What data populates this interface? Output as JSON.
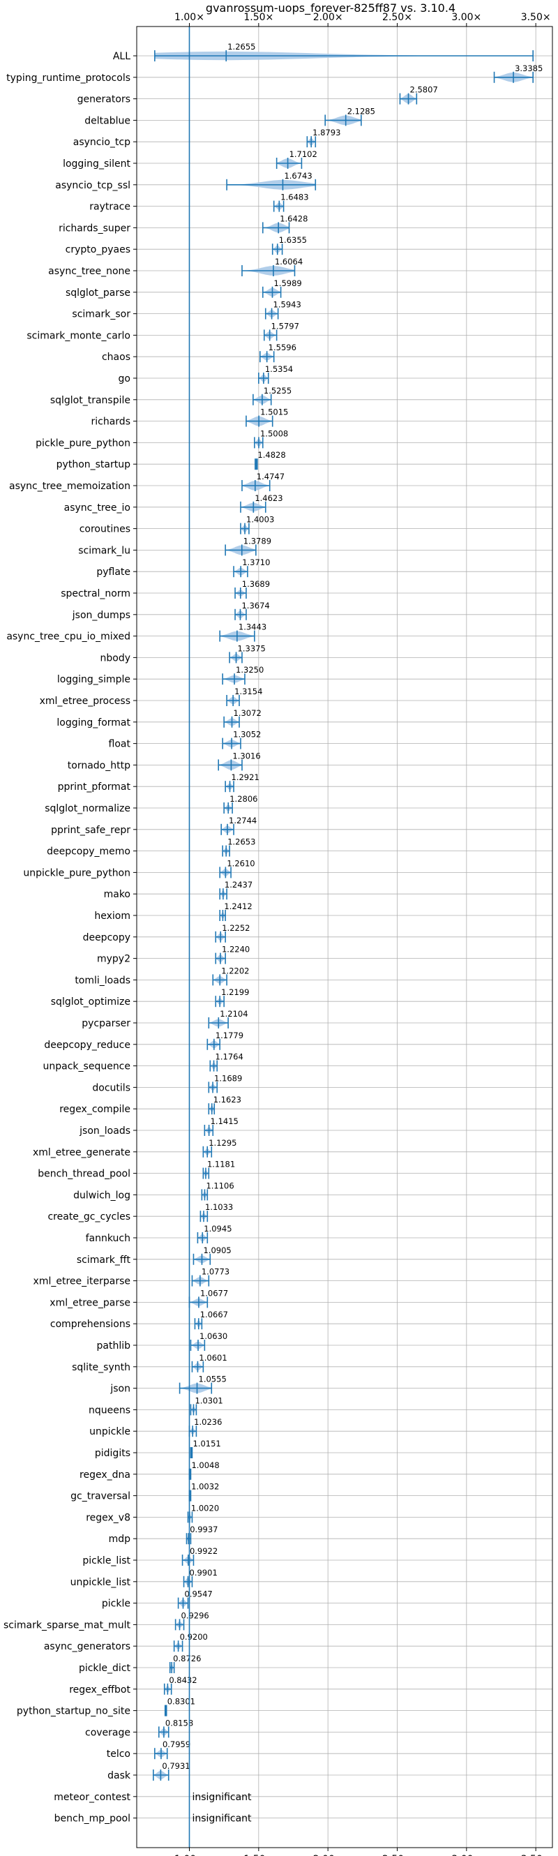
{
  "chart_data": {
    "type": "violin",
    "title": "gvanrossum-uops_forever-825ff87 vs. 3.10.4",
    "xlabel": "",
    "ylabel": "",
    "xlim": [
      0.62,
      3.62
    ],
    "x_ticks": [
      "1.00×",
      "1.50×",
      "2.00×",
      "2.50×",
      "3.00×",
      "3.50×"
    ],
    "x_tick_values": [
      1.0,
      1.5,
      2.0,
      2.5,
      3.0,
      3.5
    ],
    "reference_line": 1.0,
    "grid": true,
    "colors": {
      "violin": "#a9c9e8",
      "line": "#1f77b4",
      "text": "#000000"
    },
    "benchmarks": [
      {
        "name": "ALL",
        "value": 1.2655,
        "min": 0.75,
        "max": 3.48,
        "width": 0.4
      },
      {
        "name": "typing_runtime_protocols",
        "value": 3.3385,
        "min": 3.2,
        "max": 3.48,
        "width": 0.45
      },
      {
        "name": "generators",
        "value": 2.5807,
        "min": 2.52,
        "max": 2.64,
        "width": 0.45
      },
      {
        "name": "deltablue",
        "value": 2.1285,
        "min": 1.98,
        "max": 2.24,
        "width": 0.45
      },
      {
        "name": "asyncio_tcp",
        "value": 1.8793,
        "min": 1.85,
        "max": 1.91,
        "width": 0.35
      },
      {
        "name": "logging_silent",
        "value": 1.7102,
        "min": 1.63,
        "max": 1.81,
        "width": 0.45
      },
      {
        "name": "asyncio_tcp_ssl",
        "value": 1.6743,
        "min": 1.27,
        "max": 1.91,
        "width": 0.45
      },
      {
        "name": "raytrace",
        "value": 1.6483,
        "min": 1.61,
        "max": 1.68,
        "width": 0.35
      },
      {
        "name": "richards_super",
        "value": 1.6428,
        "min": 1.53,
        "max": 1.72,
        "width": 0.45
      },
      {
        "name": "crypto_pyaes",
        "value": 1.6355,
        "min": 1.6,
        "max": 1.67,
        "width": 0.35
      },
      {
        "name": "async_tree_none",
        "value": 1.6064,
        "min": 1.38,
        "max": 1.76,
        "width": 0.45
      },
      {
        "name": "sqlglot_parse",
        "value": 1.5989,
        "min": 1.53,
        "max": 1.66,
        "width": 0.4
      },
      {
        "name": "scimark_sor",
        "value": 1.5943,
        "min": 1.55,
        "max": 1.64,
        "width": 0.35
      },
      {
        "name": "scimark_monte_carlo",
        "value": 1.5797,
        "min": 1.54,
        "max": 1.63,
        "width": 0.35
      },
      {
        "name": "chaos",
        "value": 1.5596,
        "min": 1.51,
        "max": 1.61,
        "width": 0.35
      },
      {
        "name": "go",
        "value": 1.5354,
        "min": 1.5,
        "max": 1.57,
        "width": 0.35
      },
      {
        "name": "sqlglot_transpile",
        "value": 1.5255,
        "min": 1.46,
        "max": 1.59,
        "width": 0.4
      },
      {
        "name": "richards",
        "value": 1.5015,
        "min": 1.41,
        "max": 1.6,
        "width": 0.45
      },
      {
        "name": "pickle_pure_python",
        "value": 1.5008,
        "min": 1.47,
        "max": 1.53,
        "width": 0.35
      },
      {
        "name": "python_startup",
        "value": 1.4828,
        "min": 1.475,
        "max": 1.49,
        "width": 0.25
      },
      {
        "name": "async_tree_memoization",
        "value": 1.4747,
        "min": 1.38,
        "max": 1.58,
        "width": 0.45
      },
      {
        "name": "async_tree_io",
        "value": 1.4623,
        "min": 1.37,
        "max": 1.55,
        "width": 0.4
      },
      {
        "name": "coroutines",
        "value": 1.4003,
        "min": 1.37,
        "max": 1.43,
        "width": 0.35
      },
      {
        "name": "scimark_lu",
        "value": 1.3789,
        "min": 1.26,
        "max": 1.48,
        "width": 0.45
      },
      {
        "name": "pyflate",
        "value": 1.371,
        "min": 1.32,
        "max": 1.42,
        "width": 0.35
      },
      {
        "name": "spectral_norm",
        "value": 1.3689,
        "min": 1.33,
        "max": 1.41,
        "width": 0.3
      },
      {
        "name": "json_dumps",
        "value": 1.3674,
        "min": 1.33,
        "max": 1.41,
        "width": 0.35
      },
      {
        "name": "async_tree_cpu_io_mixed",
        "value": 1.3443,
        "min": 1.22,
        "max": 1.47,
        "width": 0.45
      },
      {
        "name": "nbody",
        "value": 1.3375,
        "min": 1.29,
        "max": 1.38,
        "width": 0.35
      },
      {
        "name": "logging_simple",
        "value": 1.325,
        "min": 1.24,
        "max": 1.4,
        "width": 0.35
      },
      {
        "name": "xml_etree_process",
        "value": 1.3154,
        "min": 1.27,
        "max": 1.36,
        "width": 0.35
      },
      {
        "name": "logging_format",
        "value": 1.3072,
        "min": 1.25,
        "max": 1.36,
        "width": 0.35
      },
      {
        "name": "float",
        "value": 1.3052,
        "min": 1.24,
        "max": 1.37,
        "width": 0.35
      },
      {
        "name": "tornado_http",
        "value": 1.3016,
        "min": 1.21,
        "max": 1.38,
        "width": 0.45
      },
      {
        "name": "pprint_pformat",
        "value": 1.2921,
        "min": 1.26,
        "max": 1.32,
        "width": 0.3
      },
      {
        "name": "sqlglot_normalize",
        "value": 1.2806,
        "min": 1.25,
        "max": 1.31,
        "width": 0.3
      },
      {
        "name": "pprint_safe_repr",
        "value": 1.2744,
        "min": 1.23,
        "max": 1.32,
        "width": 0.35
      },
      {
        "name": "deepcopy_memo",
        "value": 1.2653,
        "min": 1.24,
        "max": 1.29,
        "width": 0.3
      },
      {
        "name": "unpickle_pure_python",
        "value": 1.261,
        "min": 1.22,
        "max": 1.3,
        "width": 0.35
      },
      {
        "name": "mako",
        "value": 1.2437,
        "min": 1.22,
        "max": 1.27,
        "width": 0.3
      },
      {
        "name": "hexiom",
        "value": 1.2412,
        "min": 1.22,
        "max": 1.26,
        "width": 0.3
      },
      {
        "name": "deepcopy",
        "value": 1.2252,
        "min": 1.19,
        "max": 1.26,
        "width": 0.35
      },
      {
        "name": "mypy2",
        "value": 1.224,
        "min": 1.19,
        "max": 1.26,
        "width": 0.35
      },
      {
        "name": "tomli_loads",
        "value": 1.2202,
        "min": 1.17,
        "max": 1.27,
        "width": 0.35
      },
      {
        "name": "sqlglot_optimize",
        "value": 1.2199,
        "min": 1.19,
        "max": 1.25,
        "width": 0.3
      },
      {
        "name": "pycparser",
        "value": 1.2104,
        "min": 1.14,
        "max": 1.28,
        "width": 0.35
      },
      {
        "name": "deepcopy_reduce",
        "value": 1.1779,
        "min": 1.13,
        "max": 1.22,
        "width": 0.35
      },
      {
        "name": "unpack_sequence",
        "value": 1.1764,
        "min": 1.15,
        "max": 1.2,
        "width": 0.3
      },
      {
        "name": "docutils",
        "value": 1.1689,
        "min": 1.14,
        "max": 1.2,
        "width": 0.3
      },
      {
        "name": "regex_compile",
        "value": 1.1623,
        "min": 1.14,
        "max": 1.18,
        "width": 0.3
      },
      {
        "name": "json_loads",
        "value": 1.1415,
        "min": 1.11,
        "max": 1.17,
        "width": 0.3
      },
      {
        "name": "xml_etree_generate",
        "value": 1.1295,
        "min": 1.1,
        "max": 1.16,
        "width": 0.3
      },
      {
        "name": "bench_thread_pool",
        "value": 1.1181,
        "min": 1.1,
        "max": 1.14,
        "width": 0.3
      },
      {
        "name": "dulwich_log",
        "value": 1.1106,
        "min": 1.09,
        "max": 1.13,
        "width": 0.3
      },
      {
        "name": "create_gc_cycles",
        "value": 1.1033,
        "min": 1.08,
        "max": 1.13,
        "width": 0.3
      },
      {
        "name": "fannkuch",
        "value": 1.0945,
        "min": 1.06,
        "max": 1.13,
        "width": 0.35
      },
      {
        "name": "scimark_fft",
        "value": 1.0905,
        "min": 1.03,
        "max": 1.15,
        "width": 0.35
      },
      {
        "name": "xml_etree_iterparse",
        "value": 1.0773,
        "min": 1.02,
        "max": 1.14,
        "width": 0.35
      },
      {
        "name": "xml_etree_parse",
        "value": 1.0677,
        "min": 1.0,
        "max": 1.13,
        "width": 0.35
      },
      {
        "name": "comprehensions",
        "value": 1.0667,
        "min": 1.04,
        "max": 1.09,
        "width": 0.3
      },
      {
        "name": "pathlib",
        "value": 1.063,
        "min": 1.01,
        "max": 1.11,
        "width": 0.35
      },
      {
        "name": "sqlite_synth",
        "value": 1.0601,
        "min": 1.02,
        "max": 1.1,
        "width": 0.35
      },
      {
        "name": "json",
        "value": 1.0555,
        "min": 0.93,
        "max": 1.16,
        "width": 0.45
      },
      {
        "name": "nqueens",
        "value": 1.0301,
        "min": 1.01,
        "max": 1.05,
        "width": 0.3
      },
      {
        "name": "unpickle",
        "value": 1.0236,
        "min": 1.0,
        "max": 1.05,
        "width": 0.3
      },
      {
        "name": "pidigits",
        "value": 1.0151,
        "min": 1.01,
        "max": 1.02,
        "width": 0.25
      },
      {
        "name": "regex_dna",
        "value": 1.0048,
        "min": 1.0,
        "max": 1.01,
        "width": 0.25
      },
      {
        "name": "gc_traversal",
        "value": 1.0032,
        "min": 1.0,
        "max": 1.01,
        "width": 0.25
      },
      {
        "name": "regex_v8",
        "value": 1.002,
        "min": 0.99,
        "max": 1.02,
        "width": 0.3
      },
      {
        "name": "mdp",
        "value": 0.9937,
        "min": 0.98,
        "max": 1.01,
        "width": 0.3
      },
      {
        "name": "pickle_list",
        "value": 0.9922,
        "min": 0.95,
        "max": 1.03,
        "width": 0.35
      },
      {
        "name": "unpickle_list",
        "value": 0.9901,
        "min": 0.96,
        "max": 1.02,
        "width": 0.35
      },
      {
        "name": "pickle",
        "value": 0.9547,
        "min": 0.92,
        "max": 0.99,
        "width": 0.35
      },
      {
        "name": "scimark_sparse_mat_mult",
        "value": 0.9296,
        "min": 0.9,
        "max": 0.96,
        "width": 0.3
      },
      {
        "name": "async_generators",
        "value": 0.92,
        "min": 0.89,
        "max": 0.95,
        "width": 0.3
      },
      {
        "name": "pickle_dict",
        "value": 0.8726,
        "min": 0.86,
        "max": 0.89,
        "width": 0.3
      },
      {
        "name": "regex_effbot",
        "value": 0.8432,
        "min": 0.82,
        "max": 0.87,
        "width": 0.3
      },
      {
        "name": "python_startup_no_site",
        "value": 0.8301,
        "min": 0.825,
        "max": 0.835,
        "width": 0.25
      },
      {
        "name": "coverage",
        "value": 0.8158,
        "min": 0.78,
        "max": 0.85,
        "width": 0.35
      },
      {
        "name": "telco",
        "value": 0.7959,
        "min": 0.75,
        "max": 0.84,
        "width": 0.35
      },
      {
        "name": "dask",
        "value": 0.7931,
        "min": 0.74,
        "max": 0.85,
        "width": 0.4
      },
      {
        "name": "meteor_contest",
        "value": null,
        "note": "insignificant"
      },
      {
        "name": "bench_mp_pool",
        "value": null,
        "note": "insignificant"
      }
    ]
  }
}
